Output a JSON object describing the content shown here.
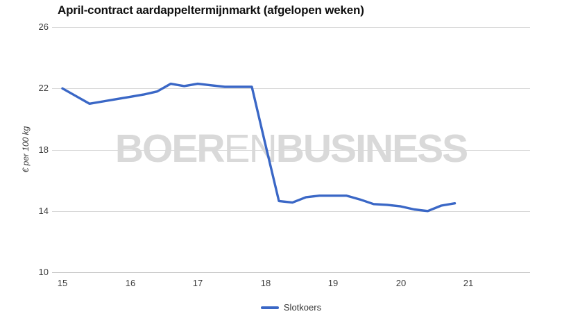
{
  "chart": {
    "title": "April-contract aardappeltermijnmarkt (afgelopen weken)",
    "y_axis_title": "€ per 100 kg",
    "watermark": {
      "part1": "BOER",
      "part2": "EN",
      "part3": "BUSINESS"
    },
    "legend": [
      {
        "label": "Slotkoers",
        "color": "#3a67c6"
      }
    ],
    "colors": {
      "line": "#3a67c6",
      "grid": "#d8d8d8",
      "axis_line": "#c2c2c2",
      "tick_text": "#3c3c3c",
      "title_text": "#111111",
      "watermark": "#d9d9d9",
      "background": "#ffffff"
    }
  },
  "chart_data": {
    "type": "line",
    "title": "April-contract aardappeltermijnmarkt (afgelopen weken)",
    "xlabel": "",
    "ylabel": "€ per 100 kg",
    "x_ticks": [
      15,
      16,
      17,
      18,
      19,
      20,
      21
    ],
    "y_ticks": [
      10,
      14,
      18,
      22,
      26
    ],
    "xlim": [
      14.85,
      21.92
    ],
    "ylim": [
      10,
      26
    ],
    "grid": "horizontal-only",
    "legend_position": "bottom-center",
    "series": [
      {
        "name": "Slotkoers",
        "color": "#3a67c6",
        "x": [
          15.0,
          15.2,
          15.4,
          15.6,
          15.8,
          16.0,
          16.2,
          16.4,
          16.6,
          16.8,
          17.0,
          17.2,
          17.4,
          17.6,
          17.8,
          18.0,
          18.2,
          18.4,
          18.6,
          18.8,
          19.0,
          19.2,
          19.4,
          19.6,
          19.8,
          20.0,
          20.2,
          20.4,
          20.6,
          20.8
        ],
        "y": [
          22.0,
          21.5,
          21.0,
          21.15,
          21.3,
          21.45,
          21.6,
          21.8,
          22.3,
          22.15,
          22.3,
          22.2,
          22.1,
          22.1,
          22.1,
          18.35,
          14.65,
          14.55,
          14.9,
          15.0,
          15.0,
          15.0,
          14.75,
          14.45,
          14.4,
          14.3,
          14.1,
          14.0,
          14.35,
          14.5
        ]
      }
    ]
  }
}
